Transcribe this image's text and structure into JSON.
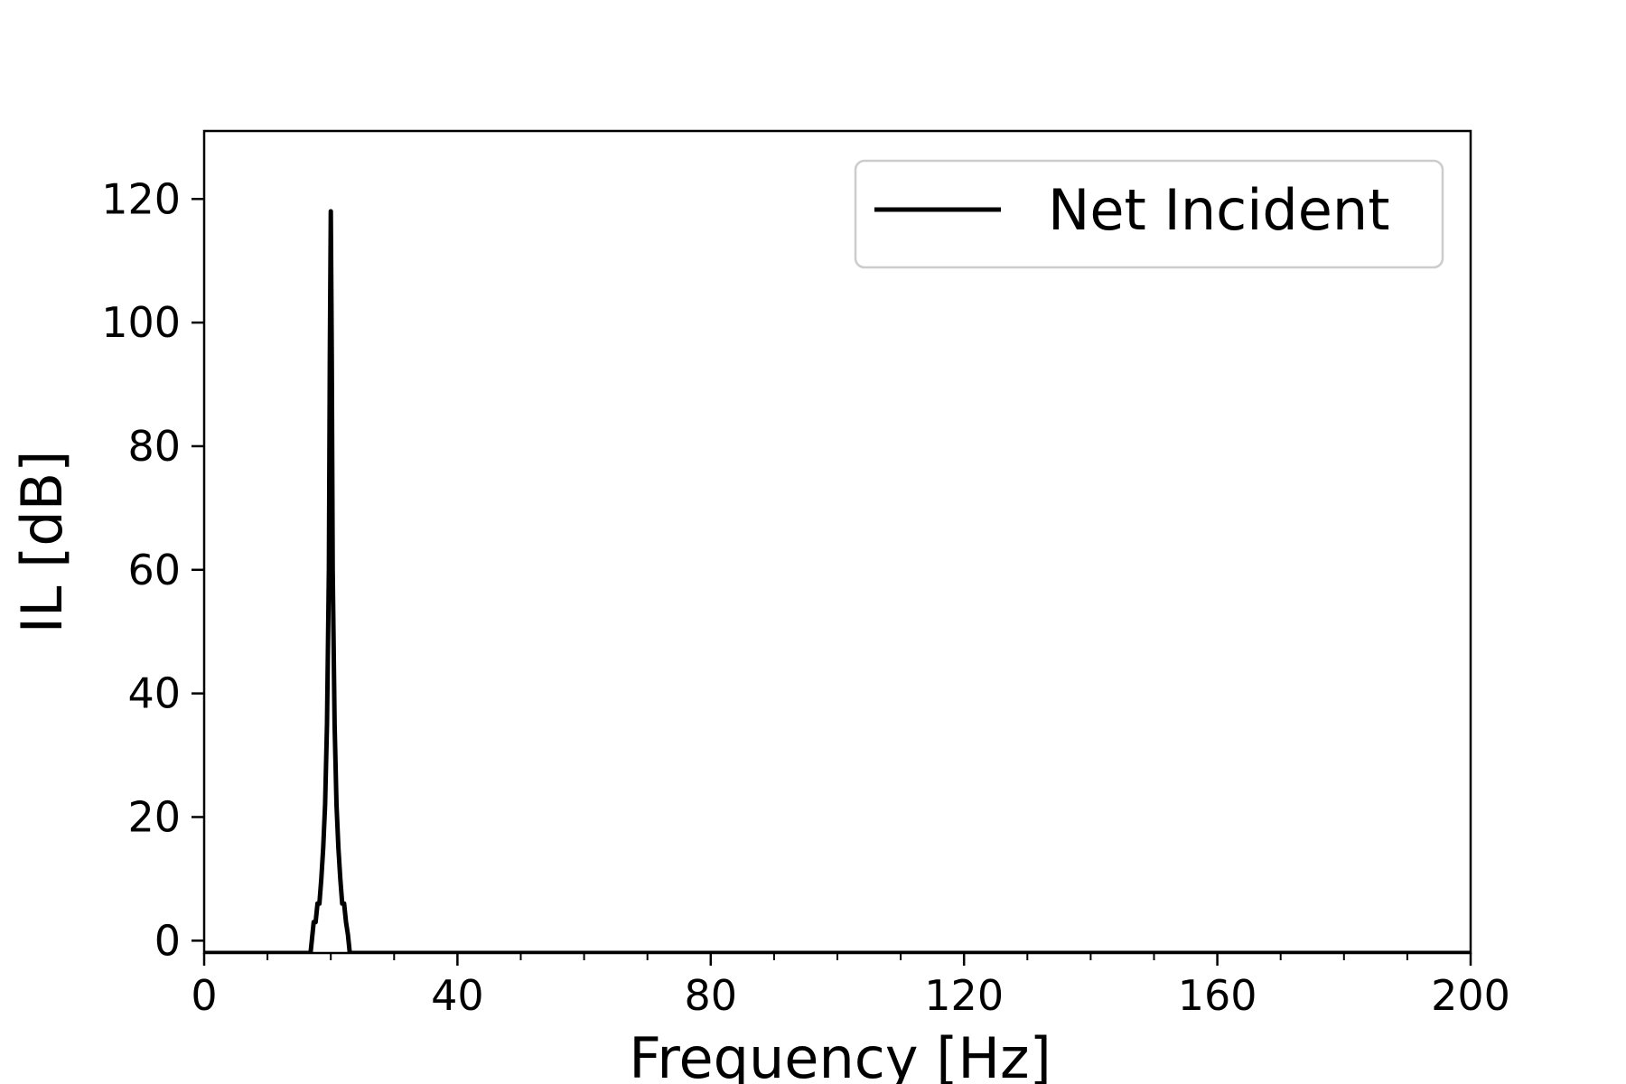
{
  "chart_data": {
    "type": "line",
    "xlabel": "Frequency [Hz]",
    "ylabel": "IL [dB]",
    "xlim": [
      0,
      200
    ],
    "ylim": [
      -2,
      131
    ],
    "x_ticks": [
      0,
      40,
      80,
      120,
      160,
      200
    ],
    "x_minor_step": 10,
    "y_ticks": [
      0,
      20,
      40,
      60,
      80,
      100,
      120
    ],
    "grid": false,
    "legend_position": "top-right",
    "series": [
      {
        "name": "Net Incident",
        "color": "#000000",
        "x": [
          0,
          16.8,
          17.0,
          17.3,
          17.6,
          17.9,
          18.2,
          18.5,
          18.8,
          19.1,
          19.4,
          19.7,
          19.85,
          20.0,
          20.15,
          20.3,
          20.6,
          20.9,
          21.2,
          21.5,
          21.8,
          22.1,
          22.4,
          22.7,
          23.0,
          200
        ],
        "y": [
          -2,
          -2,
          0,
          3,
          3,
          6,
          6,
          10,
          15,
          22,
          35,
          60,
          95,
          118,
          95,
          60,
          35,
          22,
          15,
          10,
          6,
          6,
          3,
          1,
          -2,
          -2
        ]
      }
    ]
  }
}
